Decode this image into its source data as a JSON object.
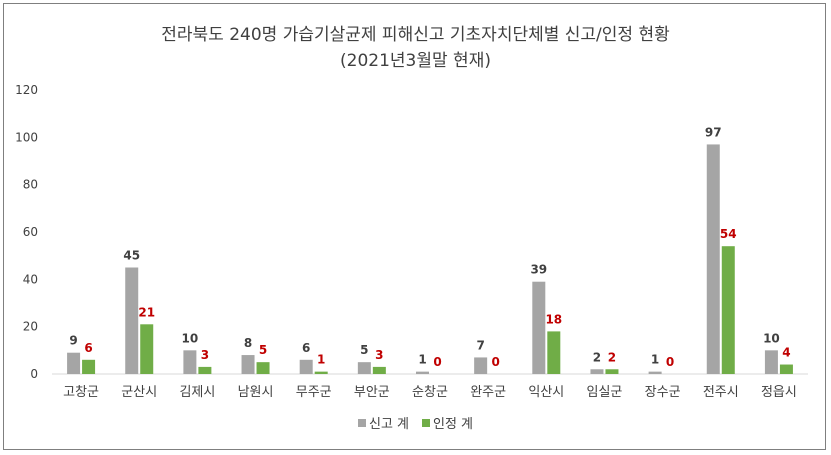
{
  "chart_data": {
    "type": "bar",
    "title": "전라북도 240명 가습기살균제 피해신고 기초자치단체별 신고/인정 현황",
    "subtitle": "(2021년3월말 현재)",
    "categories": [
      "고창군",
      "군산시",
      "김제시",
      "남원시",
      "무주군",
      "부안군",
      "순창군",
      "완주군",
      "익산시",
      "임실군",
      "장수군",
      "전주시",
      "정읍시"
    ],
    "series": [
      {
        "name": "신고 계",
        "values": [
          9,
          45,
          10,
          8,
          6,
          5,
          1,
          7,
          39,
          2,
          1,
          97,
          10
        ],
        "color": "#a5a5a5",
        "label_color": "#404040"
      },
      {
        "name": "인정 계",
        "values": [
          6,
          21,
          3,
          5,
          1,
          3,
          0,
          0,
          18,
          2,
          0,
          54,
          4
        ],
        "color": "#70ad47",
        "label_color": "#c00000"
      }
    ],
    "ylim": [
      0,
      120
    ],
    "yticks": [
      0,
      20,
      40,
      60,
      80,
      100,
      120
    ],
    "grid": false,
    "legend": "bottom"
  }
}
